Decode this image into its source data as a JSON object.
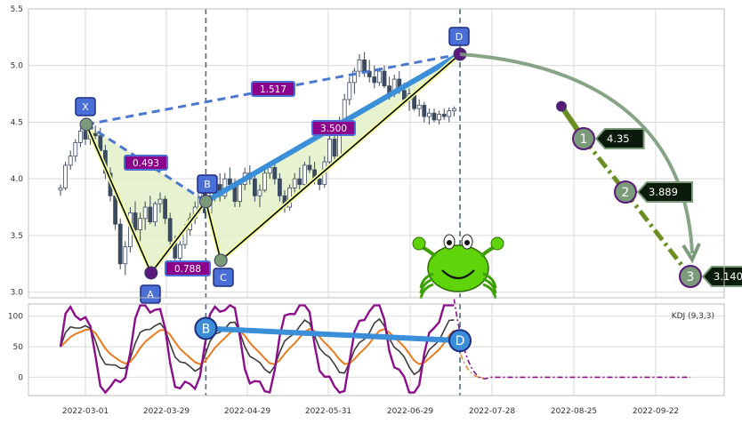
{
  "chart_data": [
    {
      "type": "candlestick",
      "title": "",
      "ylim": [
        2.95,
        5.5
      ],
      "y_ticks": [
        3.0,
        3.5,
        4.0,
        4.5,
        5.0,
        5.5
      ],
      "y_tick_labels": [
        "3.0",
        "3.5",
        "4.0",
        "4.5",
        "5.0",
        "5.5"
      ],
      "x_tick_labels": [
        "2022-03-01",
        "2022-03-29",
        "2022-04-29",
        "2022-05-31",
        "2022-06-29",
        "2022-07-28",
        "2022-08-25",
        "2022-09-22"
      ],
      "grid": true,
      "candles": [
        {
          "o": 3.9,
          "h": 3.95,
          "l": 3.85,
          "c": 3.92
        },
        {
          "o": 3.92,
          "h": 4.15,
          "l": 3.9,
          "c": 4.12
        },
        {
          "o": 4.12,
          "h": 4.25,
          "l": 4.08,
          "c": 4.2
        },
        {
          "o": 4.2,
          "h": 4.35,
          "l": 4.15,
          "c": 4.32
        },
        {
          "o": 4.32,
          "h": 4.45,
          "l": 4.28,
          "c": 4.42
        },
        {
          "o": 4.42,
          "h": 4.48,
          "l": 4.3,
          "c": 4.35
        },
        {
          "o": 4.35,
          "h": 4.45,
          "l": 4.3,
          "c": 4.4
        },
        {
          "o": 4.4,
          "h": 4.47,
          "l": 4.35,
          "c": 4.38
        },
        {
          "o": 4.38,
          "h": 4.45,
          "l": 4.2,
          "c": 4.25
        },
        {
          "o": 4.25,
          "h": 4.3,
          "l": 4.0,
          "c": 4.05
        },
        {
          "o": 4.05,
          "h": 4.1,
          "l": 3.8,
          "c": 3.85
        },
        {
          "o": 3.85,
          "h": 3.9,
          "l": 3.55,
          "c": 3.6
        },
        {
          "o": 3.6,
          "h": 3.65,
          "l": 3.2,
          "c": 3.25
        },
        {
          "o": 3.25,
          "h": 3.45,
          "l": 3.15,
          "c": 3.4
        },
        {
          "o": 3.4,
          "h": 3.75,
          "l": 3.35,
          "c": 3.7
        },
        {
          "o": 3.7,
          "h": 3.8,
          "l": 3.5,
          "c": 3.55
        },
        {
          "o": 3.55,
          "h": 3.7,
          "l": 3.45,
          "c": 3.65
        },
        {
          "o": 3.65,
          "h": 3.8,
          "l": 3.55,
          "c": 3.75
        },
        {
          "o": 3.75,
          "h": 3.85,
          "l": 3.6,
          "c": 3.62
        },
        {
          "o": 3.62,
          "h": 3.8,
          "l": 3.58,
          "c": 3.78
        },
        {
          "o": 3.78,
          "h": 3.88,
          "l": 3.7,
          "c": 3.82
        },
        {
          "o": 3.82,
          "h": 3.85,
          "l": 3.6,
          "c": 3.65
        },
        {
          "o": 3.65,
          "h": 3.7,
          "l": 3.4,
          "c": 3.45
        },
        {
          "o": 3.45,
          "h": 3.5,
          "l": 3.25,
          "c": 3.3
        },
        {
          "o": 3.3,
          "h": 3.45,
          "l": 3.25,
          "c": 3.42
        },
        {
          "o": 3.42,
          "h": 3.6,
          "l": 3.38,
          "c": 3.55
        },
        {
          "o": 3.55,
          "h": 3.7,
          "l": 3.5,
          "c": 3.65
        },
        {
          "o": 3.65,
          "h": 3.8,
          "l": 3.6,
          "c": 3.75
        },
        {
          "o": 3.75,
          "h": 3.92,
          "l": 3.7,
          "c": 3.88
        },
        {
          "o": 3.88,
          "h": 3.95,
          "l": 3.65,
          "c": 3.7
        },
        {
          "o": 3.7,
          "h": 3.88,
          "l": 3.66,
          "c": 3.85
        },
        {
          "o": 3.85,
          "h": 4.0,
          "l": 3.8,
          "c": 3.95
        },
        {
          "o": 3.95,
          "h": 4.05,
          "l": 3.8,
          "c": 3.85
        },
        {
          "o": 3.85,
          "h": 4.05,
          "l": 3.82,
          "c": 4.0
        },
        {
          "o": 4.0,
          "h": 4.1,
          "l": 3.9,
          "c": 3.95
        },
        {
          "o": 3.95,
          "h": 4.0,
          "l": 3.75,
          "c": 3.8
        },
        {
          "o": 3.8,
          "h": 3.98,
          "l": 3.75,
          "c": 3.95
        },
        {
          "o": 3.95,
          "h": 4.1,
          "l": 3.9,
          "c": 4.05
        },
        {
          "o": 4.05,
          "h": 4.12,
          "l": 3.95,
          "c": 4.0
        },
        {
          "o": 4.0,
          "h": 4.05,
          "l": 3.8,
          "c": 3.85
        },
        {
          "o": 3.85,
          "h": 3.95,
          "l": 3.75,
          "c": 3.9
        },
        {
          "o": 3.9,
          "h": 4.1,
          "l": 3.88,
          "c": 4.05
        },
        {
          "o": 4.05,
          "h": 4.15,
          "l": 4.0,
          "c": 4.1
        },
        {
          "o": 4.1,
          "h": 4.15,
          "l": 3.95,
          "c": 4.0
        },
        {
          "o": 4.0,
          "h": 4.05,
          "l": 3.8,
          "c": 3.85
        },
        {
          "o": 3.85,
          "h": 3.9,
          "l": 3.7,
          "c": 3.75
        },
        {
          "o": 3.75,
          "h": 3.95,
          "l": 3.72,
          "c": 3.92
        },
        {
          "o": 3.92,
          "h": 4.05,
          "l": 3.88,
          "c": 4.0
        },
        {
          "o": 4.0,
          "h": 4.1,
          "l": 3.9,
          "c": 3.95
        },
        {
          "o": 3.95,
          "h": 4.15,
          "l": 3.92,
          "c": 4.12
        },
        {
          "o": 4.12,
          "h": 4.2,
          "l": 4.05,
          "c": 4.08
        },
        {
          "o": 4.08,
          "h": 4.15,
          "l": 3.95,
          "c": 4.0
        },
        {
          "o": 4.0,
          "h": 4.05,
          "l": 3.9,
          "c": 3.95
        },
        {
          "o": 3.95,
          "h": 4.2,
          "l": 3.92,
          "c": 4.15
        },
        {
          "o": 4.15,
          "h": 4.38,
          "l": 4.1,
          "c": 4.35
        },
        {
          "o": 4.35,
          "h": 4.45,
          "l": 4.15,
          "c": 4.2
        },
        {
          "o": 4.2,
          "h": 4.55,
          "l": 4.18,
          "c": 4.5
        },
        {
          "o": 4.5,
          "h": 4.75,
          "l": 4.45,
          "c": 4.7
        },
        {
          "o": 4.7,
          "h": 4.9,
          "l": 4.65,
          "c": 4.85
        },
        {
          "o": 4.85,
          "h": 4.98,
          "l": 4.75,
          "c": 4.95
        },
        {
          "o": 4.95,
          "h": 5.1,
          "l": 4.9,
          "c": 5.05
        },
        {
          "o": 5.05,
          "h": 5.12,
          "l": 4.9,
          "c": 4.95
        },
        {
          "o": 4.95,
          "h": 5.05,
          "l": 4.85,
          "c": 4.9
        },
        {
          "o": 4.9,
          "h": 5.0,
          "l": 4.8,
          "c": 4.85
        },
        {
          "o": 4.85,
          "h": 4.98,
          "l": 4.82,
          "c": 4.95
        },
        {
          "o": 4.95,
          "h": 5.0,
          "l": 4.8,
          "c": 4.82
        },
        {
          "o": 4.82,
          "h": 4.9,
          "l": 4.7,
          "c": 4.75
        },
        {
          "o": 4.75,
          "h": 4.92,
          "l": 4.72,
          "c": 4.88
        },
        {
          "o": 4.88,
          "h": 4.95,
          "l": 4.75,
          "c": 4.78
        },
        {
          "o": 4.78,
          "h": 4.85,
          "l": 4.65,
          "c": 4.7
        },
        {
          "o": 4.7,
          "h": 4.8,
          "l": 4.6,
          "c": 4.75
        },
        {
          "o": 4.75,
          "h": 4.78,
          "l": 4.6,
          "c": 4.62
        },
        {
          "o": 4.62,
          "h": 4.7,
          "l": 4.55,
          "c": 4.65
        },
        {
          "o": 4.65,
          "h": 4.68,
          "l": 4.5,
          "c": 4.55
        },
        {
          "o": 4.55,
          "h": 4.62,
          "l": 4.48,
          "c": 4.58
        },
        {
          "o": 4.58,
          "h": 4.62,
          "l": 4.5,
          "c": 4.52
        },
        {
          "o": 4.52,
          "h": 4.6,
          "l": 4.48,
          "c": 4.57
        },
        {
          "o": 4.57,
          "h": 4.62,
          "l": 4.52,
          "c": 4.55
        },
        {
          "o": 4.55,
          "h": 4.63,
          "l": 4.5,
          "c": 4.6
        },
        {
          "o": 4.6,
          "h": 4.64,
          "l": 4.55,
          "c": 4.62
        }
      ],
      "harmonic_points": [
        {
          "label": "X",
          "value": 4.48
        },
        {
          "label": "A",
          "value": 3.17
        },
        {
          "label": "B",
          "value": 3.8
        },
        {
          "label": "C",
          "value": 3.28
        },
        {
          "label": "D",
          "value": 5.1
        }
      ],
      "ratios": [
        "0.493",
        "0.788",
        "1.517",
        "3.500"
      ],
      "targets": [
        {
          "label": "1",
          "value": "4.35"
        },
        {
          "label": "2",
          "value": "3.889"
        },
        {
          "label": "3",
          "value": "3.140"
        }
      ],
      "indicator_label": "KDJ (9,3,3)",
      "sub_ylim": [
        -30,
        120
      ],
      "sub_y_ticks": [
        0,
        50,
        100
      ],
      "sub_y_tick_labels": [
        "0",
        "50",
        "100"
      ],
      "sub_markers": [
        {
          "label": "B"
        },
        {
          "label": "D"
        }
      ],
      "colors": {
        "candle_up": "#ffffff",
        "candle_down": "#3b4a5e",
        "xd_dashed": "#4a78d0",
        "bd_line": "#3a8fd8",
        "leg_line": "#000000",
        "label_box": "#4a6fd6",
        "ratio_box": "#8b008b",
        "target_circle": "#7a9a7a",
        "target_line": "#6b8e23",
        "k_line": "#3c3c3c",
        "d_line": "#e87c1e",
        "j_line": "#8b0f8b",
        "fill": "#e3f0c8"
      }
    }
  ]
}
